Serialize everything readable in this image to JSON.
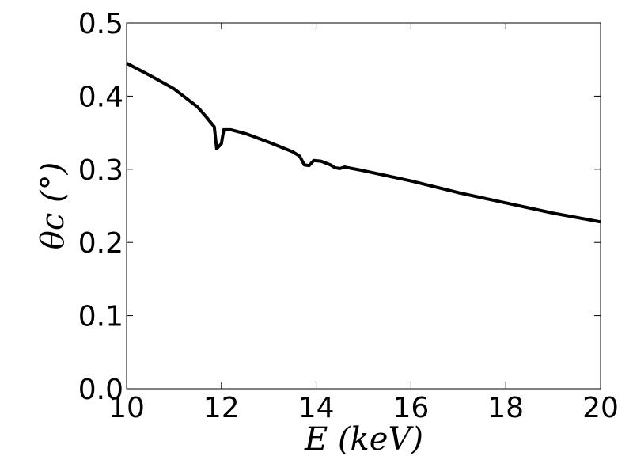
{
  "chart_data": {
    "type": "line",
    "xlabel": "E (keV)",
    "ylabel": "θc (°)",
    "x": [
      10,
      10.5,
      11,
      11.5,
      11.7,
      11.85,
      11.9,
      12.0,
      12.05,
      12.2,
      12.5,
      13,
      13.5,
      13.65,
      13.75,
      13.85,
      13.95,
      14.1,
      14.3,
      14.4,
      14.5,
      14.6,
      15,
      16,
      17,
      18,
      19,
      20
    ],
    "series": [
      {
        "color": "#000000",
        "values": [
          0.445,
          0.428,
          0.41,
          0.385,
          0.37,
          0.358,
          0.328,
          0.335,
          0.354,
          0.354,
          0.349,
          0.337,
          0.324,
          0.318,
          0.306,
          0.305,
          0.312,
          0.311,
          0.306,
          0.302,
          0.301,
          0.303,
          0.298,
          0.284,
          0.268,
          0.254,
          0.24,
          0.228
        ]
      }
    ],
    "xlim": [
      10,
      20
    ],
    "ylim": [
      0,
      0.5
    ],
    "xticks": [
      10,
      12,
      14,
      16,
      18,
      20
    ],
    "yticks": [
      {
        "value": 0,
        "label": "0.0"
      },
      0.1,
      0.2,
      0.3,
      0.4,
      0.5
    ],
    "grid": false
  }
}
